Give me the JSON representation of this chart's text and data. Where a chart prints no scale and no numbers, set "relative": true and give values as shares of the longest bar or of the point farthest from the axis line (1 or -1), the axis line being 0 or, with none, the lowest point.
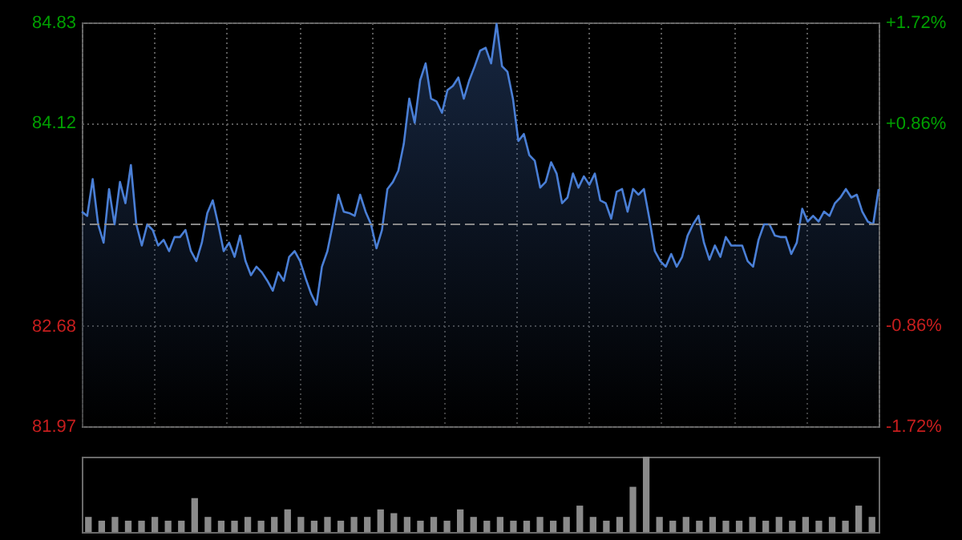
{
  "chart_data": [
    {
      "type": "area",
      "categories": [
        null,
        null,
        null,
        null,
        null,
        null,
        null,
        null,
        null,
        null,
        null,
        null,
        null,
        null,
        null,
        null,
        null,
        null,
        null,
        null,
        null,
        null,
        null,
        null,
        null,
        null,
        null,
        null,
        null,
        null,
        null,
        null,
        null,
        null,
        null,
        null,
        null,
        null,
        null,
        null,
        null,
        null,
        null,
        null,
        null,
        null,
        null,
        null,
        null,
        null,
        null,
        null,
        null,
        null,
        null,
        null,
        null,
        null,
        null,
        null,
        null,
        null,
        null,
        null,
        null,
        null,
        null,
        null,
        null,
        null,
        null,
        null,
        null,
        null,
        null,
        null,
        null,
        null,
        null,
        null,
        null,
        null,
        null,
        null,
        null,
        null,
        null,
        null,
        null,
        null,
        null,
        null,
        null,
        null,
        null,
        null,
        null,
        null,
        null,
        null,
        null,
        null,
        null,
        null,
        null,
        null,
        null,
        null,
        null,
        null,
        null,
        null,
        null,
        null,
        null,
        null,
        null,
        null,
        null,
        null,
        null,
        null,
        null,
        null,
        null,
        null,
        null,
        null,
        null,
        null,
        null,
        null,
        null,
        null,
        null,
        null,
        null,
        null,
        null,
        null,
        null,
        null,
        null,
        null,
        null,
        null,
        null
      ],
      "series": [
        {
          "color": "#4a7fd6",
          "values": [
            83.49,
            83.46,
            83.72,
            83.4,
            83.27,
            83.65,
            83.4,
            83.7,
            83.55,
            83.82,
            83.4,
            83.25,
            83.4,
            83.36,
            83.25,
            83.29,
            83.21,
            83.31,
            83.31,
            83.36,
            83.21,
            83.14,
            83.27,
            83.48,
            83.57,
            83.4,
            83.21,
            83.27,
            83.17,
            83.32,
            83.14,
            83.04,
            83.1,
            83.06,
            83.0,
            82.93,
            83.06,
            83.0,
            83.17,
            83.21,
            83.14,
            83.02,
            82.91,
            82.83,
            83.1,
            83.21,
            83.4,
            83.61,
            83.49,
            83.48,
            83.46,
            83.61,
            83.49,
            83.4,
            83.23,
            83.36,
            83.65,
            83.7,
            83.78,
            83.97,
            84.29,
            84.12,
            84.42,
            84.54,
            84.29,
            84.27,
            84.19,
            84.35,
            84.38,
            84.44,
            84.29,
            84.42,
            84.52,
            84.63,
            84.65,
            84.54,
            84.82,
            84.52,
            84.48,
            84.29,
            83.99,
            84.04,
            83.89,
            83.85,
            83.66,
            83.7,
            83.84,
            83.76,
            83.55,
            83.59,
            83.76,
            83.66,
            83.74,
            83.68,
            83.76,
            83.57,
            83.55,
            83.44,
            83.63,
            83.65,
            83.49,
            83.65,
            83.61,
            83.65,
            83.44,
            83.21,
            83.14,
            83.1,
            83.19,
            83.1,
            83.17,
            83.32,
            83.4,
            83.46,
            83.27,
            83.15,
            83.25,
            83.17,
            83.31,
            83.25,
            83.25,
            83.25,
            83.14,
            83.1,
            83.29,
            83.4,
            83.4,
            83.32,
            83.31,
            83.31,
            83.19,
            83.27,
            83.51,
            83.42,
            83.46,
            83.42,
            83.49,
            83.46,
            83.55,
            83.59,
            83.65,
            83.59,
            83.61,
            83.49,
            83.42,
            83.4,
            83.65
          ]
        }
      ],
      "ylim": [
        81.97,
        84.83
      ],
      "yticks": [
        84.83,
        84.12,
        82.68,
        81.97
      ],
      "y2lim": [
        -1.72,
        1.72
      ],
      "y2ticks": [
        {
          "value": 1.72,
          "label": "+1.72%"
        },
        {
          "value": 0.86,
          "label": "+0.86%"
        },
        {
          "value": -0.86,
          "label": "-0.86%"
        },
        {
          "value": -1.72,
          "label": "-1.72%"
        }
      ],
      "ref_lines": [
        {
          "axis": "y",
          "value": 83.4,
          "color": "#888888",
          "line_style": "dashed"
        }
      ],
      "grid": true
    },
    {
      "type": "bar",
      "relative": true,
      "categories": [
        null,
        null,
        null,
        null,
        null,
        null,
        null,
        null,
        null,
        null,
        null,
        null,
        null,
        null,
        null,
        null,
        null,
        null,
        null,
        null,
        null,
        null,
        null,
        null,
        null,
        null,
        null,
        null,
        null,
        null,
        null,
        null,
        null,
        null,
        null,
        null,
        null,
        null,
        null,
        null,
        null,
        null,
        null,
        null,
        null,
        null,
        null,
        null,
        null,
        null,
        null,
        null,
        null,
        null,
        null,
        null,
        null,
        null,
        null,
        null
      ],
      "series": [
        {
          "color": "#8a8a8a",
          "values": [
            0.2,
            0.15,
            0.2,
            0.15,
            0.15,
            0.2,
            0.15,
            0.15,
            0.45,
            0.2,
            0.15,
            0.15,
            0.2,
            0.15,
            0.2,
            0.3,
            0.2,
            0.15,
            0.2,
            0.15,
            0.2,
            0.2,
            0.3,
            0.25,
            0.2,
            0.15,
            0.2,
            0.15,
            0.3,
            0.2,
            0.15,
            0.2,
            0.15,
            0.15,
            0.2,
            0.15,
            0.2,
            0.35,
            0.2,
            0.15,
            0.2,
            0.6,
            1,
            0.2,
            0.15,
            0.2,
            0.15,
            0.2,
            0.15,
            0.15,
            0.2,
            0.15,
            0.2,
            0.15,
            0.2,
            0.15,
            0.2,
            0.15,
            0.35,
            0.2
          ]
        }
      ]
    }
  ]
}
